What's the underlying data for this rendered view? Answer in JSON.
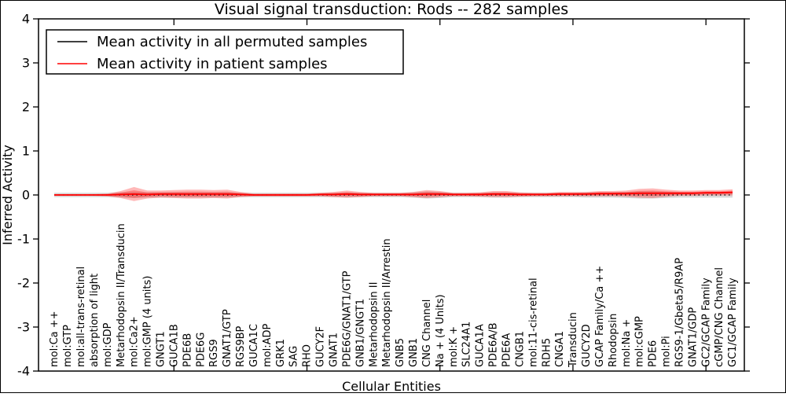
{
  "chart_data": {
    "type": "line",
    "title": "Visual signal transduction: Rods -- 282 samples",
    "xlabel": "Cellular Entities",
    "ylabel": "Inferred Activity",
    "ylim": [
      -4,
      4
    ],
    "y_ticks": [
      4,
      3,
      2,
      1,
      0,
      -1,
      -2,
      -3,
      -4
    ],
    "grid": false,
    "legend_position": "upper left",
    "categories": [
      "mol:Ca ++",
      "mol:GTP",
      "mol:all-trans-retinal",
      "absorption of light",
      "mol:GDP",
      "Metarhodopsin II/Transducin",
      "mol:Ca2+",
      "mol:GMP (4 units)",
      "GNGT1",
      "GUCA1B",
      "PDE6B",
      "PDE6G",
      "RGS9",
      "GNAT1/GTP",
      "RGS9BP",
      "GUCA1C",
      "mol:ADP",
      "GRK1",
      "SAG",
      "RHO",
      "GUCY2F",
      "GNAT1",
      "PDE6G/GNAT1/GTP",
      "GNB1/GNGT1",
      "Metarhodopsin II",
      "Metarhodopsin II/Arrestin",
      "GNB5",
      "GNB1",
      "CNG Channel",
      "Na + (4 Units)",
      "mol:K +",
      "SLC24A1",
      "GUCA1A",
      "PDE6A/B",
      "PDE6A",
      "CNGB1",
      "mol:11-cis-retinal",
      "RDH5",
      "CNGA1",
      "Transducin",
      "GUCY2D",
      "GCAP Family/Ca ++",
      "Rhodopsin",
      "mol:Na +",
      "mol:cGMP",
      "PDE6",
      "mol:Pi",
      "RGS9-1/Gbeta5/R9AP",
      "GNAT1/GDP",
      "GC2/GCAP Family",
      "cGMP/CNG Channel",
      "GC1/GCAP Family"
    ],
    "series": [
      {
        "name": "Mean activity in all permuted samples",
        "color": "#000000",
        "line_style": "dashed",
        "band_color": "#aaaaaa",
        "band_opacity": 0.45,
        "values": [
          0,
          0,
          0,
          0,
          0,
          0,
          0,
          0,
          0,
          0,
          0,
          0,
          0,
          0,
          0,
          0,
          0,
          0,
          0,
          0,
          0,
          0,
          0,
          0,
          0,
          0,
          0,
          0,
          0,
          0,
          0,
          0,
          0,
          0,
          0,
          0,
          0,
          0,
          0,
          0,
          0,
          0,
          0,
          0,
          0,
          0,
          0,
          0,
          0,
          0,
          0,
          0
        ],
        "band_halfwidth": [
          0.05,
          0.05,
          0.05,
          0.05,
          0.05,
          0.06,
          0.07,
          0.06,
          0.06,
          0.06,
          0.06,
          0.06,
          0.06,
          0.06,
          0.05,
          0.05,
          0.05,
          0.05,
          0.05,
          0.05,
          0.05,
          0.05,
          0.06,
          0.05,
          0.05,
          0.05,
          0.05,
          0.06,
          0.08,
          0.07,
          0.05,
          0.05,
          0.05,
          0.06,
          0.06,
          0.05,
          0.05,
          0.05,
          0.05,
          0.05,
          0.06,
          0.06,
          0.06,
          0.07,
          0.08,
          0.08,
          0.07,
          0.06,
          0.06,
          0.06,
          0.06,
          0.06
        ]
      },
      {
        "name": "Mean activity in patient samples",
        "color": "#ff0000",
        "line_style": "solid",
        "band_color": "#ff0000",
        "band_opacity": 0.28,
        "values": [
          0,
          0,
          0,
          0,
          0,
          0.01,
          0.02,
          0.01,
          0.02,
          0.02,
          0.02,
          0.02,
          0.02,
          0.02,
          0.01,
          0,
          0,
          0,
          0,
          0,
          0.01,
          0.01,
          0.02,
          0.01,
          0.01,
          0.01,
          0.01,
          0.01,
          0.02,
          0.02,
          0.01,
          0.01,
          0.01,
          0.02,
          0.02,
          0.01,
          0.01,
          0.01,
          0.02,
          0.02,
          0.02,
          0.03,
          0.03,
          0.03,
          0.04,
          0.04,
          0.04,
          0.04,
          0.04,
          0.05,
          0.05,
          0.06
        ],
        "band_halfwidth": [
          0.02,
          0.02,
          0.02,
          0.02,
          0.03,
          0.08,
          0.16,
          0.09,
          0.08,
          0.09,
          0.1,
          0.1,
          0.09,
          0.1,
          0.06,
          0.03,
          0.03,
          0.03,
          0.03,
          0.03,
          0.04,
          0.06,
          0.08,
          0.06,
          0.04,
          0.04,
          0.04,
          0.06,
          0.09,
          0.07,
          0.04,
          0.04,
          0.05,
          0.07,
          0.07,
          0.05,
          0.04,
          0.04,
          0.05,
          0.05,
          0.05,
          0.06,
          0.06,
          0.07,
          0.1,
          0.11,
          0.08,
          0.06,
          0.06,
          0.06,
          0.06,
          0.07
        ]
      }
    ]
  }
}
